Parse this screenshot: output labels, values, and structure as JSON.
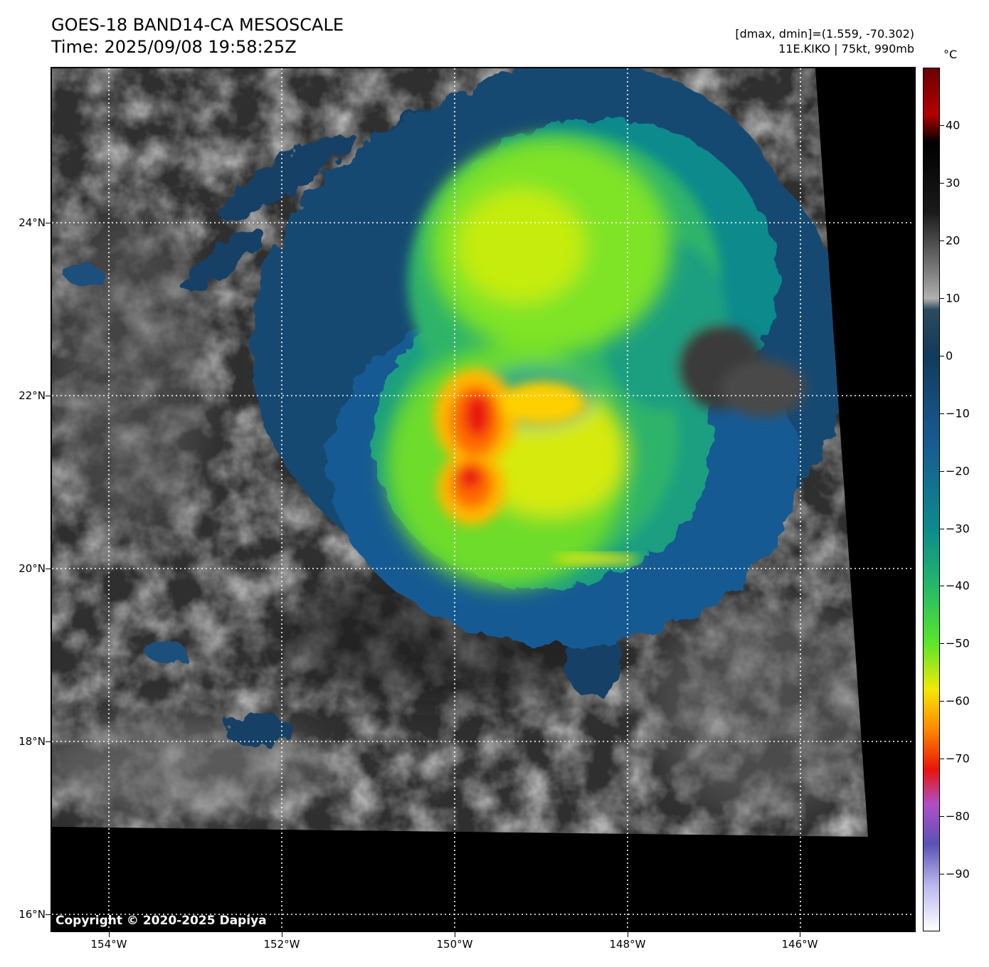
{
  "header": {
    "title_line1": "GOES-18 BAND14-CA MESOSCALE",
    "title_line2": "Time: 2025/09/08 19:58:25Z",
    "info_line1": "[dmax, dmin]=(1.559, -70.302)",
    "info_line2": "11E.KIKO | 75kt, 990mb"
  },
  "map": {
    "lat_labels": [
      "24°N",
      "22°N",
      "20°N",
      "18°N",
      "16°N"
    ],
    "lon_labels": [
      "154°W",
      "152°W",
      "150°W",
      "148°W",
      "146°W"
    ],
    "lat_values": [
      24,
      22,
      20,
      18,
      16
    ],
    "lon_values": [
      -154,
      -152,
      -150,
      -148,
      -146
    ],
    "extent": {
      "lon_min": -154.67,
      "lon_max": -144.67,
      "lat_min": 15.79,
      "lat_max": 25.79
    },
    "background_color": "#000000",
    "grid": "dotted white",
    "storm": {
      "name": "11E.KIKO",
      "wind": "75kt",
      "pressure": "990mb"
    }
  },
  "colorbar": {
    "unit": "°C",
    "tick_labels": [
      "40",
      "30",
      "20",
      "10",
      "0",
      "−10",
      "−20",
      "−30",
      "−40",
      "−50",
      "−60",
      "−70",
      "−80",
      "−90"
    ],
    "tick_values": [
      40,
      30,
      20,
      10,
      0,
      -10,
      -20,
      -30,
      -40,
      -50,
      -60,
      -70,
      -80,
      -90
    ],
    "range": [
      -100,
      50
    ],
    "stops": [
      {
        "v": 50,
        "c": "#6b0000"
      },
      {
        "v": 42,
        "c": "#b30000"
      },
      {
        "v": 37,
        "c": "#000000"
      },
      {
        "v": 25,
        "c": "#1a1a1a"
      },
      {
        "v": 15,
        "c": "#7a7a7a"
      },
      {
        "v": 10,
        "c": "#b0b0b0"
      },
      {
        "v": 8,
        "c": "#2c4a5e"
      },
      {
        "v": 0,
        "c": "#123b5a"
      },
      {
        "v": -15,
        "c": "#185a93"
      },
      {
        "v": -30,
        "c": "#0e8a8c"
      },
      {
        "v": -40,
        "c": "#23b86a"
      },
      {
        "v": -50,
        "c": "#5be62a"
      },
      {
        "v": -58,
        "c": "#f3e806"
      },
      {
        "v": -65,
        "c": "#ff8800"
      },
      {
        "v": -72,
        "c": "#e8140c"
      },
      {
        "v": -78,
        "c": "#b04ec8"
      },
      {
        "v": -85,
        "c": "#5a52b6"
      },
      {
        "v": -92,
        "c": "#b9b6ee"
      },
      {
        "v": -100,
        "c": "#ffffff"
      }
    ]
  },
  "copyright": "Copyright © 2020-2025 Dapiya"
}
